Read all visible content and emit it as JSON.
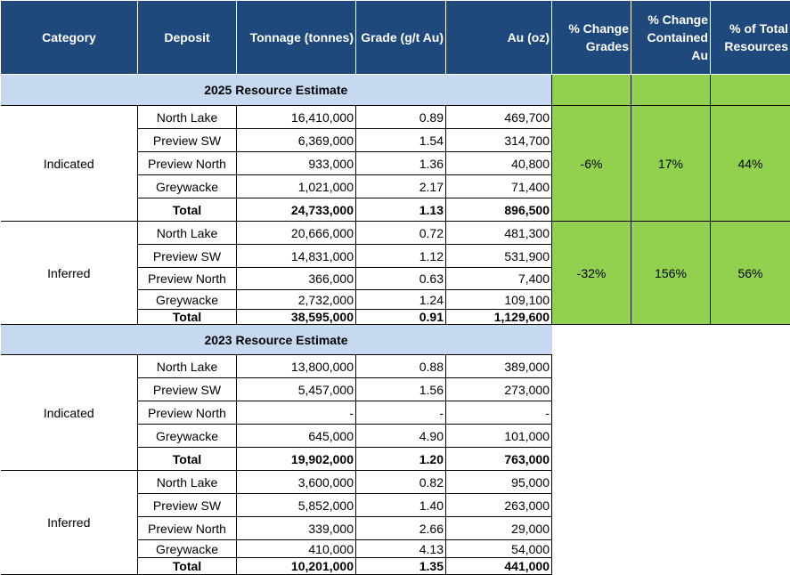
{
  "headers": [
    "Category",
    "Deposit",
    "Tonnage (tonnes)",
    "Grade (g/t Au)",
    "Au (oz)",
    "% Change Grades",
    "% Change Contained Au",
    "% of  Total Resources"
  ],
  "sections": [
    {
      "title": "2025 Resource Estimate",
      "groups": [
        {
          "category": "Indicated",
          "changes": [
            "-6%",
            "17%",
            "44%"
          ],
          "rows": [
            [
              "North Lake",
              "16,410,000",
              "0.89",
              "469,700"
            ],
            [
              "Preview SW",
              "6,369,000",
              "1.54",
              "314,700"
            ],
            [
              "Preview North",
              "933,000",
              "1.36",
              "40,800"
            ],
            [
              "Greywacke",
              "1,021,000",
              "2.17",
              "71,400"
            ],
            [
              "Total",
              "24,733,000",
              "1.13",
              "896,500"
            ]
          ]
        },
        {
          "category": "Inferred",
          "changes": [
            "-32%",
            "156%",
            "56%"
          ],
          "rows": [
            [
              "North Lake",
              "20,666,000",
              "0.72",
              "481,300"
            ],
            [
              "Preview SW",
              "14,831,000",
              "1.12",
              "531,900"
            ],
            [
              "Preview North",
              "366,000",
              "0.63",
              "7,400"
            ],
            [
              "Greywacke",
              "2,732,000",
              "1.24",
              "109,100"
            ],
            [
              "Total",
              "38,595,000",
              "0.91",
              "1,129,600"
            ]
          ]
        }
      ]
    },
    {
      "title": "2023 Resource Estimate",
      "groups": [
        {
          "category": "Indicated",
          "changes": null,
          "rows": [
            [
              "North Lake",
              "13,800,000",
              "0.88",
              "389,000"
            ],
            [
              "Preview SW",
              "5,457,000",
              "1.56",
              "273,000"
            ],
            [
              "Preview North",
              "-",
              "-",
              "-"
            ],
            [
              "Greywacke",
              "645,000",
              "4.90",
              "101,000"
            ],
            [
              "Total",
              "19,902,000",
              "1.20",
              "763,000"
            ]
          ]
        },
        {
          "category": "Inferred",
          "changes": null,
          "rows": [
            [
              "North Lake",
              "3,600,000",
              "0.82",
              "95,000"
            ],
            [
              "Preview SW",
              "5,852,000",
              "1.40",
              "263,000"
            ],
            [
              "Preview North",
              "339,000",
              "2.66",
              "29,000"
            ],
            [
              "Greywacke",
              "410,000",
              "4.13",
              "54,000"
            ],
            [
              "Total",
              "10,201,000",
              "1.35",
              "441,000"
            ]
          ]
        }
      ]
    }
  ],
  "colors": {
    "header": "#1f497d",
    "band": "#c6d9f1",
    "green": "#92d050"
  }
}
